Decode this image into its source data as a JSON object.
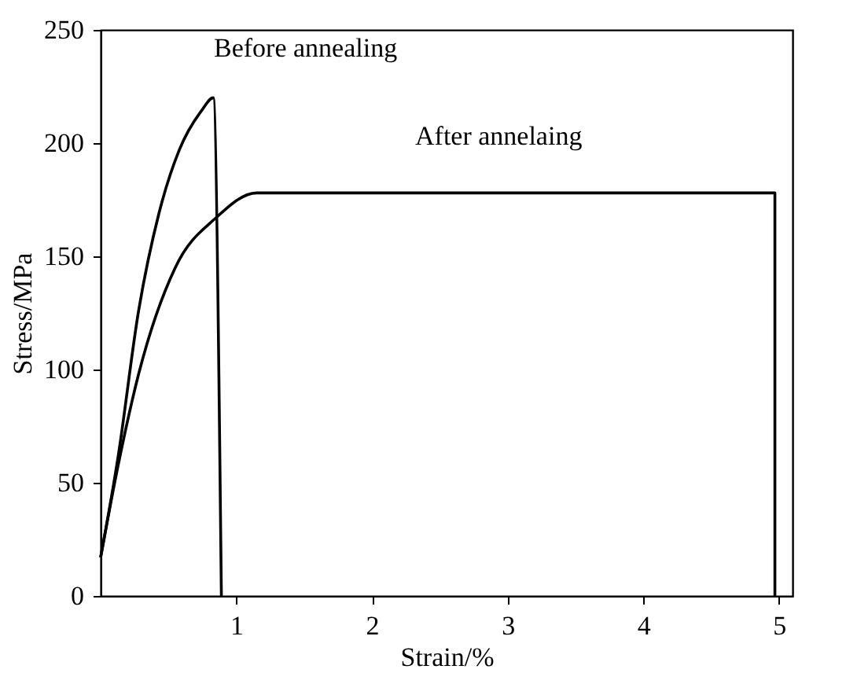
{
  "chart_data": {
    "type": "line",
    "xlabel": "Strain/%",
    "ylabel": "Stress/MPa",
    "xlim": [
      0,
      5.1
    ],
    "ylim": [
      0,
      250
    ],
    "xticks": [
      1,
      2,
      3,
      4,
      5
    ],
    "yticks": [
      0,
      50,
      100,
      150,
      200,
      250
    ],
    "grid": false,
    "marker": "none",
    "line_style": "solid",
    "series": [
      {
        "color": "#000000",
        "x": [
          0,
          0.13,
          0.28,
          0.43,
          0.58,
          0.74,
          0.83,
          0.89
        ],
        "values": [
          17,
          62,
          126,
          169,
          197,
          214,
          220,
          0
        ]
      },
      {
        "color": "#000000",
        "x": [
          0,
          0.13,
          0.28,
          0.55,
          0.85,
          1.15,
          4.97,
          4.97
        ],
        "values": [
          17,
          58,
          98,
          145,
          167,
          178,
          178,
          0
        ]
      }
    ],
    "annotations": [
      "Before annealing",
      "After annelaing"
    ]
  }
}
